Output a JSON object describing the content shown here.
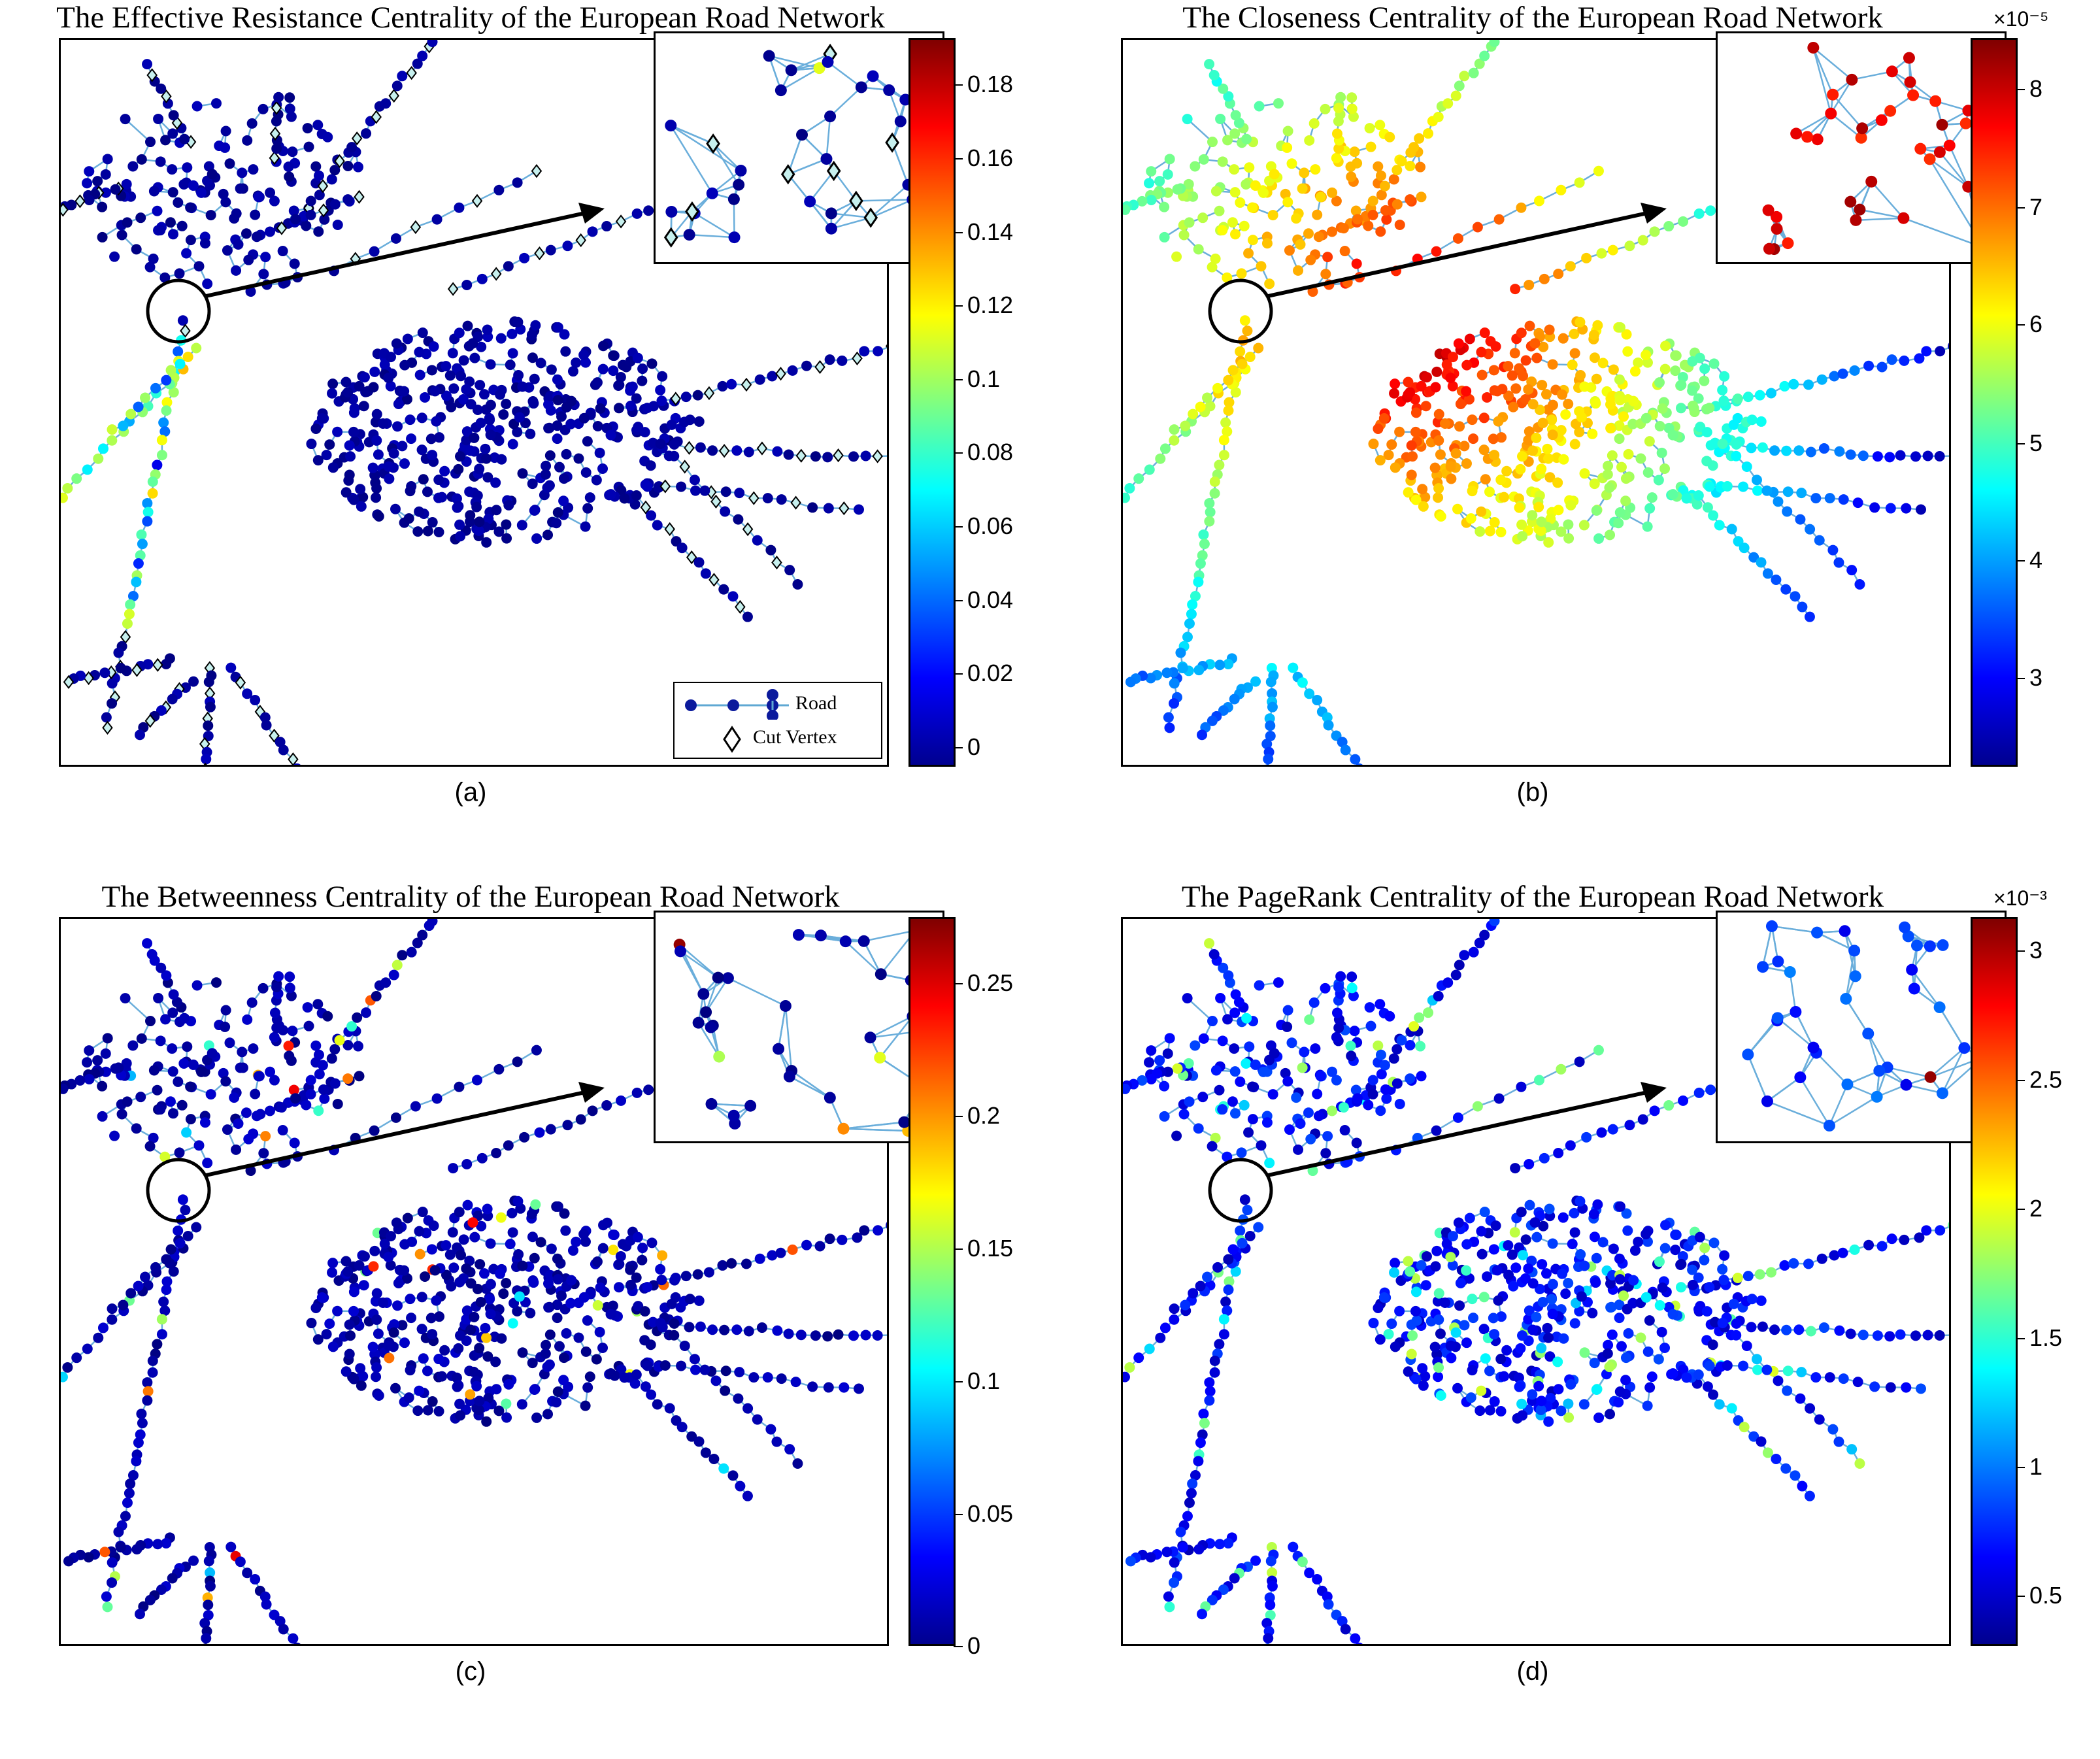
{
  "panels": [
    {
      "title": "The Effective Resistance Centrality of the European Road Network",
      "sublabel": "(a)",
      "exponent": "",
      "scheme": "er",
      "ticks": [
        "0",
        "0.02",
        "0.04",
        "0.06",
        "0.08",
        "0.1",
        "0.12",
        "0.14",
        "0.16",
        "0.18"
      ],
      "tick_fracs": [
        0.027,
        0.128,
        0.229,
        0.33,
        0.431,
        0.532,
        0.633,
        0.734,
        0.835,
        0.936
      ],
      "legend": {
        "road_label": "Road",
        "cut_label": "Cut Vertex"
      }
    },
    {
      "title": "The Closeness Centrality of the European Road Network",
      "sublabel": "(b)",
      "exponent": "×10⁻⁵",
      "scheme": "close",
      "ticks": [
        "3",
        "4",
        "5",
        "6",
        "7",
        "8"
      ],
      "tick_fracs": [
        0.122,
        0.283,
        0.444,
        0.607,
        0.768,
        0.93
      ],
      "legend": null
    },
    {
      "title": "The Betweenness Centrality of the European Road Network",
      "sublabel": "(c)",
      "exponent": "",
      "scheme": "btw",
      "ticks": [
        "0",
        "0.05",
        "0.1",
        "0.15",
        "0.2",
        "0.25"
      ],
      "tick_fracs": [
        0.0,
        0.181,
        0.363,
        0.545,
        0.727,
        0.909
      ],
      "legend": null
    },
    {
      "title": "The PageRank Centrality of the European Road Network",
      "sublabel": "(d)",
      "exponent": "×10⁻³",
      "scheme": "pr",
      "ticks": [
        "0.5",
        "1",
        "1.5",
        "2",
        "2.5",
        "3"
      ],
      "tick_fracs": [
        0.069,
        0.246,
        0.422,
        0.6,
        0.777,
        0.954
      ],
      "legend": null
    }
  ]
}
